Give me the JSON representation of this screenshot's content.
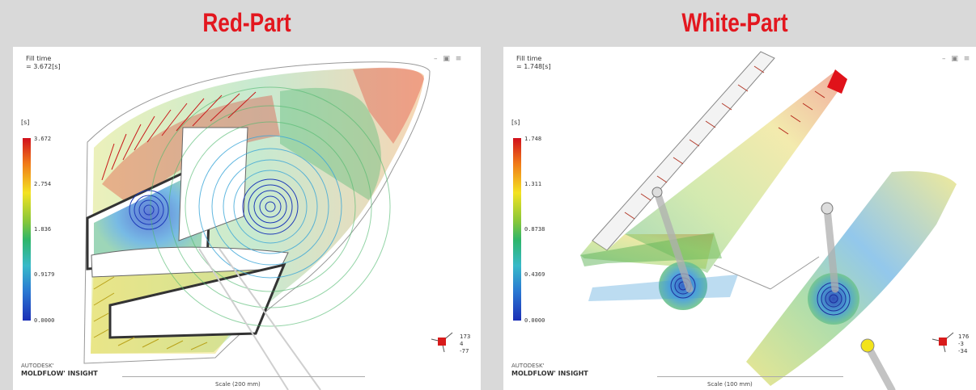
{
  "titles": {
    "left": "Red-Part",
    "right": "White-Part"
  },
  "left": {
    "result_name": "Fill time",
    "result_value": "= 3.672[s]",
    "unit": "[s]",
    "ticks": [
      "3.672",
      "2.754",
      "1.836",
      "0.9179",
      "0.0000"
    ],
    "brand_line1": "AUTODESK'",
    "brand_line2": "MOLDFLOW' INSIGHT",
    "scale": "Scale (200 mm)",
    "triad": [
      "173",
      "4",
      "-77"
    ],
    "window_controls": "– ▣ ≡"
  },
  "right": {
    "result_name": "Fill time",
    "result_value": "= 1.748[s]",
    "unit": "[s]",
    "ticks": [
      "1.748",
      "1.311",
      "0.8738",
      "0.4369",
      "0.0000"
    ],
    "brand_line1": "AUTODESK'",
    "brand_line2": "MOLDFLOW' INSIGHT",
    "scale": "Scale (100 mm)",
    "triad": [
      "176",
      "-3",
      "-34"
    ],
    "window_controls": "– ▣ ≡"
  },
  "colors": {
    "title_red": "#e3171f",
    "background": "#d9d9d9",
    "panel": "#ffffff"
  }
}
